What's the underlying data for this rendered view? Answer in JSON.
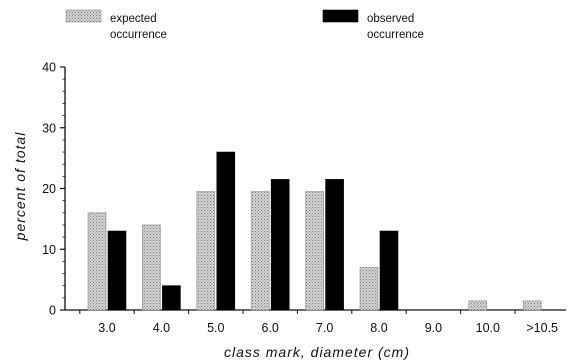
{
  "chart_data": {
    "type": "bar",
    "categories": [
      "3.0",
      "4.0",
      "5.0",
      "6.0",
      "7.0",
      "8.0",
      "9.0",
      "10.0",
      ">10.5"
    ],
    "series": [
      {
        "name": "expected occurrence",
        "legend_lines": [
          "expected",
          "occurrence"
        ],
        "values": [
          16,
          14,
          19.5,
          19.5,
          19.5,
          7,
          0,
          1.5,
          1.5
        ],
        "color": "#bdbdbd",
        "pattern": "stipple"
      },
      {
        "name": "observed occurrence",
        "legend_lines": [
          "observed",
          "occurrence"
        ],
        "values": [
          13,
          4,
          26,
          21.5,
          21.5,
          13,
          0,
          0,
          0
        ],
        "color": "#000000",
        "pattern": "solid"
      }
    ],
    "xlabel": "class mark, diameter (cm)",
    "ylabel": "percent of total",
    "ylim": [
      0,
      40
    ],
    "yticks": [
      "0",
      "10",
      "20",
      "30",
      "40"
    ],
    "legend_position": "top",
    "grid": false
  }
}
